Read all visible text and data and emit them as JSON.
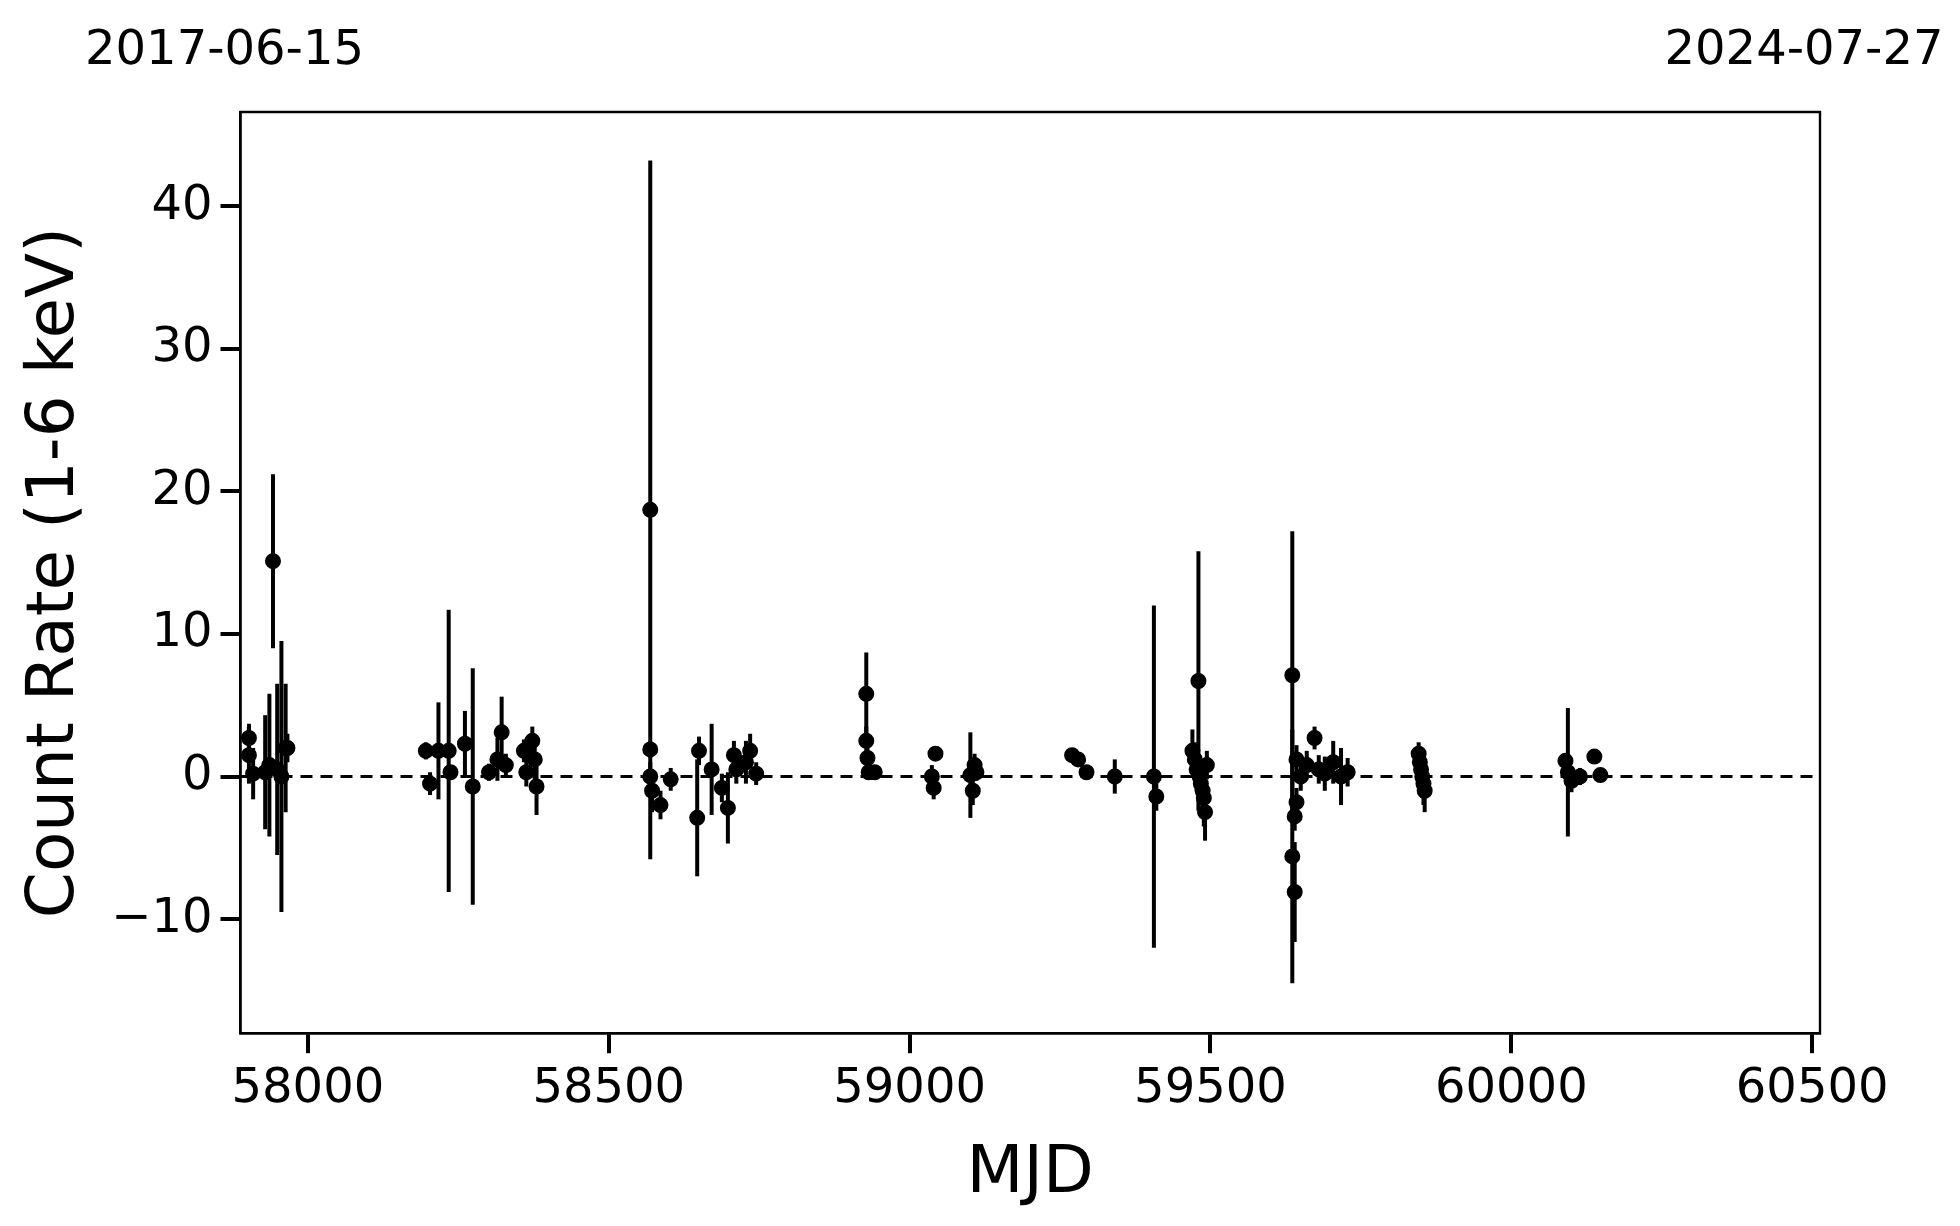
{
  "chart_data": {
    "type": "scatter",
    "xlabel": "MJD",
    "ylabel": "Count Rate (1-6 keV)",
    "x": [
      57902,
      57902,
      57909,
      57929,
      57936,
      57942,
      57949,
      57956,
      57963,
      57966,
      58196,
      58203,
      58217,
      58234,
      58237,
      58261,
      58274,
      58301,
      58315,
      58322,
      58329,
      58359,
      58363,
      58373,
      58377,
      58380,
      58569,
      58569,
      58569,
      58572,
      58586,
      58603,
      58647,
      58650,
      58671,
      58688,
      58698,
      58708,
      58712,
      58728,
      58735,
      58745,
      58928,
      58928,
      58930,
      58932,
      58942,
      59037,
      59040,
      59043,
      59101,
      59105,
      59108,
      59111,
      59270,
      59280,
      59294,
      59341,
      59406,
      59410,
      59470,
      59474,
      59477,
      59480,
      59482,
      59484,
      59487,
      59489,
      59491,
      59494,
      59636,
      59636,
      59640,
      59640,
      59643,
      59643,
      59650,
      59660,
      59673,
      59680,
      59690,
      59704,
      59717,
      59728,
      59846,
      59848,
      59850,
      59852,
      59854,
      59856,
      60090,
      60094,
      60100,
      60114,
      60138,
      60148
    ],
    "values": [
      2.7,
      1.5,
      0.2,
      0.3,
      0.8,
      15.1,
      0.5,
      0.0,
      2.0,
      2.0,
      1.8,
      -0.5,
      1.8,
      1.8,
      0.3,
      2.3,
      -0.7,
      0.3,
      1.2,
      3.1,
      0.8,
      1.8,
      0.3,
      2.5,
      1.2,
      -0.7,
      18.7,
      1.9,
      0.0,
      -1.0,
      -2.0,
      -0.2,
      -2.9,
      1.8,
      0.5,
      -0.8,
      -2.2,
      1.5,
      0.5,
      1.0,
      1.8,
      0.2,
      5.8,
      2.5,
      1.3,
      0.3,
      0.3,
      0.0,
      -0.8,
      1.6,
      0.1,
      -1.0,
      0.8,
      0.3,
      1.5,
      1.2,
      0.3,
      0.0,
      0.0,
      -1.4,
      1.8,
      1.2,
      0.5,
      6.7,
      0.0,
      -0.5,
      -1.0,
      -1.5,
      -2.5,
      0.8,
      7.1,
      -5.6,
      -8.1,
      -2.8,
      -1.8,
      1.2,
      0.0,
      0.8,
      2.7,
      0.5,
      0.2,
      1.0,
      0.0,
      0.3,
      1.6,
      1.0,
      0.5,
      0.0,
      -0.5,
      -1.0,
      1.1,
      0.3,
      -0.3,
      0.0,
      1.4,
      0.1
    ],
    "errors": [
      1.0,
      2.0,
      1.8,
      4.0,
      5.0,
      6.1,
      6.0,
      9.5,
      4.5,
      1.0,
      0.6,
      0.8,
      3.4,
      9.9,
      0.5,
      2.3,
      8.3,
      0.6,
      1.5,
      2.5,
      0.8,
      0.8,
      1.0,
      1.0,
      1.5,
      2.0,
      24.5,
      0.6,
      1.0,
      1.5,
      1.0,
      0.8,
      4.1,
      1.0,
      3.2,
      1.0,
      2.5,
      1.0,
      1.0,
      1.5,
      1.2,
      0.8,
      2.9,
      1.0,
      1.0,
      0.5,
      0.5,
      0.8,
      0.8,
      0.4,
      3.0,
      1.0,
      0.8,
      0.6,
      0.5,
      0.5,
      0.5,
      1.2,
      12.0,
      1.0,
      1.5,
      1.2,
      1.5,
      9.1,
      1.5,
      1.5,
      1.5,
      2.0,
      2.0,
      1.0,
      10.1,
      8.9,
      3.5,
      1.0,
      1.0,
      1.0,
      1.0,
      1.0,
      0.8,
      1.0,
      1.2,
      1.5,
      2.0,
      1.0,
      0.8,
      1.0,
      1.0,
      1.5,
      1.5,
      1.5,
      0.5,
      4.5,
      0.8,
      0.6,
      0.3,
      0.4
    ],
    "color": "#000000",
    "marker": "circle",
    "grid": false,
    "legend": false,
    "xlim": [
      57888,
      60513
    ],
    "xticks": [
      58000,
      58500,
      59000,
      59500,
      60000,
      60500
    ],
    "annotations": [
      "2017-06-15",
      "2024-07-27"
    ],
    "ylim": [
      -18,
      46.6
    ],
    "yticks": [
      -10,
      0,
      10,
      20,
      30,
      40
    ],
    "ref_lines": [
      {
        "axis": "y",
        "value": 0,
        "color": "#000000",
        "line_style": "dashed"
      }
    ]
  }
}
